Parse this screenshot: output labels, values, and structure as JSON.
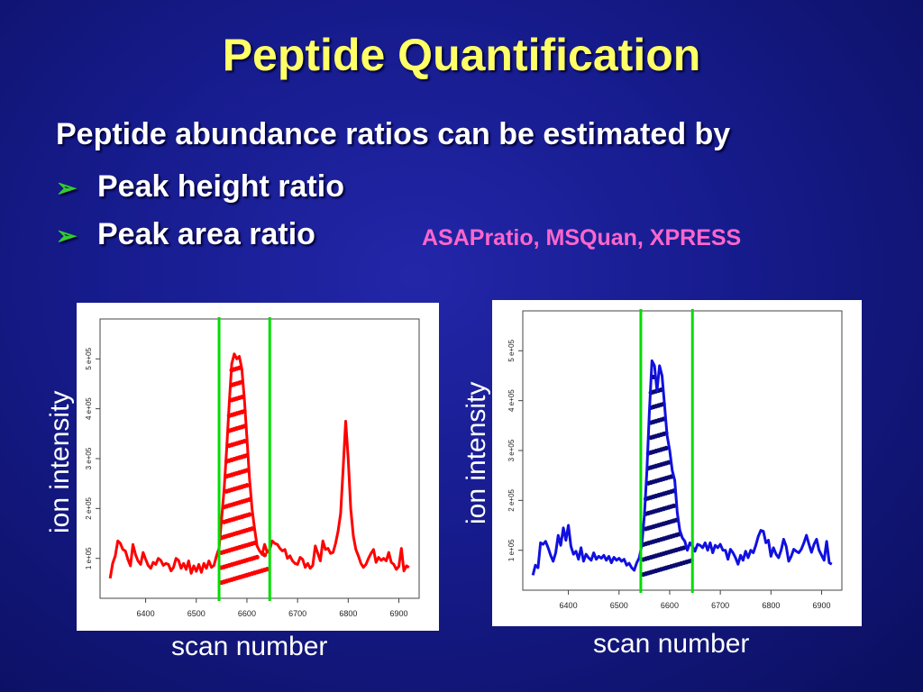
{
  "slide": {
    "title": "Peptide Quantification",
    "intro": "Peptide abundance ratios can be estimated by",
    "bullets": [
      "Peak height ratio",
      "Peak area ratio"
    ],
    "tools_note": "ASAPratio, MSQuan, XPRESS",
    "bullet_marker": "arrow-bullet-icon"
  },
  "chart_data": [
    {
      "type": "line",
      "xlabel": "scan number",
      "ylabel": "ion intensity",
      "xlim": [
        6310,
        6940
      ],
      "ylim": [
        20000,
        580000
      ],
      "x_ticks": [
        6400,
        6500,
        6600,
        6700,
        6800,
        6900
      ],
      "y_ticks": [
        "1 e+05",
        "2 e+05",
        "3 e+05",
        "4 e+05",
        "5 e+05"
      ],
      "grid": false,
      "series_color": "#ff0000",
      "marker_color": "#ff0000",
      "boundary_color": "#00dd00",
      "boundaries": [
        6545,
        6645
      ],
      "series": [
        {
          "x": [
            6330,
            6335,
            6340,
            6345,
            6350,
            6355,
            6360,
            6365,
            6370,
            6375,
            6380,
            6385,
            6390,
            6395,
            6400,
            6405,
            6410,
            6415,
            6420,
            6425,
            6430,
            6435,
            6440,
            6445,
            6450,
            6455,
            6460,
            6465,
            6470,
            6475,
            6480,
            6485,
            6490,
            6495,
            6500,
            6505,
            6510,
            6515,
            6520,
            6525,
            6530,
            6535,
            6540,
            6545,
            6550,
            6555,
            6560,
            6565,
            6570,
            6575,
            6580,
            6585,
            6590,
            6595,
            6600,
            6605,
            6610,
            6615,
            6620,
            6625,
            6630,
            6635,
            6640,
            6645,
            6650,
            6655,
            6660,
            6665,
            6670,
            6675,
            6680,
            6685,
            6690,
            6695,
            6700,
            6705,
            6710,
            6715,
            6720,
            6725,
            6730,
            6735,
            6740,
            6745,
            6750,
            6755,
            6760,
            6765,
            6770,
            6775,
            6780,
            6785,
            6790,
            6795,
            6800,
            6805,
            6810,
            6815,
            6820,
            6825,
            6830,
            6835,
            6840,
            6845,
            6850,
            6855,
            6860,
            6865,
            6870,
            6875,
            6880,
            6885,
            6890,
            6895,
            6900,
            6905,
            6910,
            6915,
            6920
          ],
          "y": [
            60000,
            90000,
            105000,
            135000,
            130000,
            118000,
            115000,
            98000,
            85000,
            128000,
            108000,
            95000,
            88000,
            112000,
            98000,
            86000,
            80000,
            92000,
            88000,
            100000,
            96000,
            86000,
            90000,
            88000,
            75000,
            82000,
            100000,
            96000,
            80000,
            90000,
            78000,
            95000,
            70000,
            85000,
            74000,
            88000,
            72000,
            90000,
            80000,
            95000,
            82000,
            86000,
            105000,
            120000,
            180000,
            240000,
            320000,
            410000,
            490000,
            510000,
            500000,
            505000,
            480000,
            420000,
            340000,
            260000,
            200000,
            160000,
            125000,
            115000,
            108000,
            128000,
            112000,
            118000,
            135000,
            130000,
            128000,
            120000,
            115000,
            118000,
            100000,
            105000,
            95000,
            90000,
            88000,
            102000,
            98000,
            82000,
            90000,
            80000,
            86000,
            125000,
            110000,
            95000,
            135000,
            118000,
            120000,
            110000,
            112000,
            130000,
            155000,
            190000,
            280000,
            375000,
            300000,
            200000,
            145000,
            118000,
            105000,
            90000,
            82000,
            88000,
            100000,
            110000,
            118000,
            92000,
            102000,
            96000,
            100000,
            95000,
            112000,
            92000,
            88000,
            78000,
            84000,
            120000,
            75000,
            85000,
            82000
          ]
        }
      ]
    },
    {
      "type": "line",
      "xlabel": "scan number",
      "ylabel": "ion intensity",
      "xlim": [
        6310,
        6940
      ],
      "ylim": [
        20000,
        580000
      ],
      "x_ticks": [
        6400,
        6500,
        6600,
        6700,
        6800,
        6900
      ],
      "y_ticks": [
        "1 e+05",
        "2 e+05",
        "3 e+05",
        "4 e+05",
        "5 e+05"
      ],
      "grid": false,
      "series_color": "#1010e0",
      "marker_color": "#0a0a70",
      "boundary_color": "#00dd00",
      "boundaries": [
        6543,
        6645
      ],
      "series": [
        {
          "x": [
            6330,
            6335,
            6340,
            6345,
            6350,
            6355,
            6360,
            6365,
            6370,
            6375,
            6380,
            6385,
            6390,
            6395,
            6400,
            6405,
            6410,
            6415,
            6420,
            6425,
            6430,
            6435,
            6440,
            6445,
            6450,
            6455,
            6460,
            6465,
            6470,
            6475,
            6480,
            6485,
            6490,
            6495,
            6500,
            6505,
            6510,
            6515,
            6520,
            6525,
            6530,
            6535,
            6540,
            6545,
            6550,
            6555,
            6560,
            6565,
            6570,
            6575,
            6580,
            6585,
            6590,
            6595,
            6600,
            6605,
            6610,
            6615,
            6620,
            6625,
            6630,
            6635,
            6640,
            6645,
            6650,
            6655,
            6660,
            6665,
            6670,
            6675,
            6680,
            6685,
            6690,
            6695,
            6700,
            6705,
            6710,
            6715,
            6720,
            6725,
            6730,
            6735,
            6740,
            6745,
            6750,
            6755,
            6760,
            6765,
            6770,
            6775,
            6780,
            6785,
            6790,
            6795,
            6800,
            6805,
            6810,
            6815,
            6820,
            6825,
            6830,
            6835,
            6840,
            6845,
            6850,
            6855,
            6860,
            6865,
            6870,
            6875,
            6880,
            6885,
            6890,
            6895,
            6900,
            6905,
            6910,
            6915,
            6920
          ],
          "y": [
            50000,
            70000,
            65000,
            115000,
            112000,
            118000,
            105000,
            90000,
            78000,
            95000,
            130000,
            110000,
            145000,
            120000,
            150000,
            108000,
            92000,
            98000,
            82000,
            105000,
            78000,
            92000,
            85000,
            80000,
            95000,
            82000,
            88000,
            84000,
            90000,
            80000,
            88000,
            75000,
            86000,
            80000,
            84000,
            78000,
            82000,
            70000,
            74000,
            65000,
            60000,
            75000,
            85000,
            110000,
            170000,
            260000,
            380000,
            480000,
            470000,
            420000,
            470000,
            450000,
            390000,
            330000,
            300000,
            260000,
            240000,
            175000,
            140000,
            125000,
            118000,
            100000,
            115000,
            108000,
            98000,
            112000,
            110000,
            105000,
            115000,
            100000,
            115000,
            95000,
            110000,
            105000,
            112000,
            100000,
            100000,
            82000,
            102000,
            95000,
            85000,
            72000,
            90000,
            80000,
            98000,
            85000,
            100000,
            95000,
            110000,
            128000,
            140000,
            138000,
            115000,
            120000,
            88000,
            105000,
            92000,
            85000,
            100000,
            122000,
            108000,
            78000,
            88000,
            102000,
            98000,
            95000,
            102000,
            115000,
            130000,
            112000,
            96000,
            112000,
            122000,
            100000,
            90000,
            80000,
            118000,
            75000,
            72000
          ]
        }
      ]
    }
  ]
}
